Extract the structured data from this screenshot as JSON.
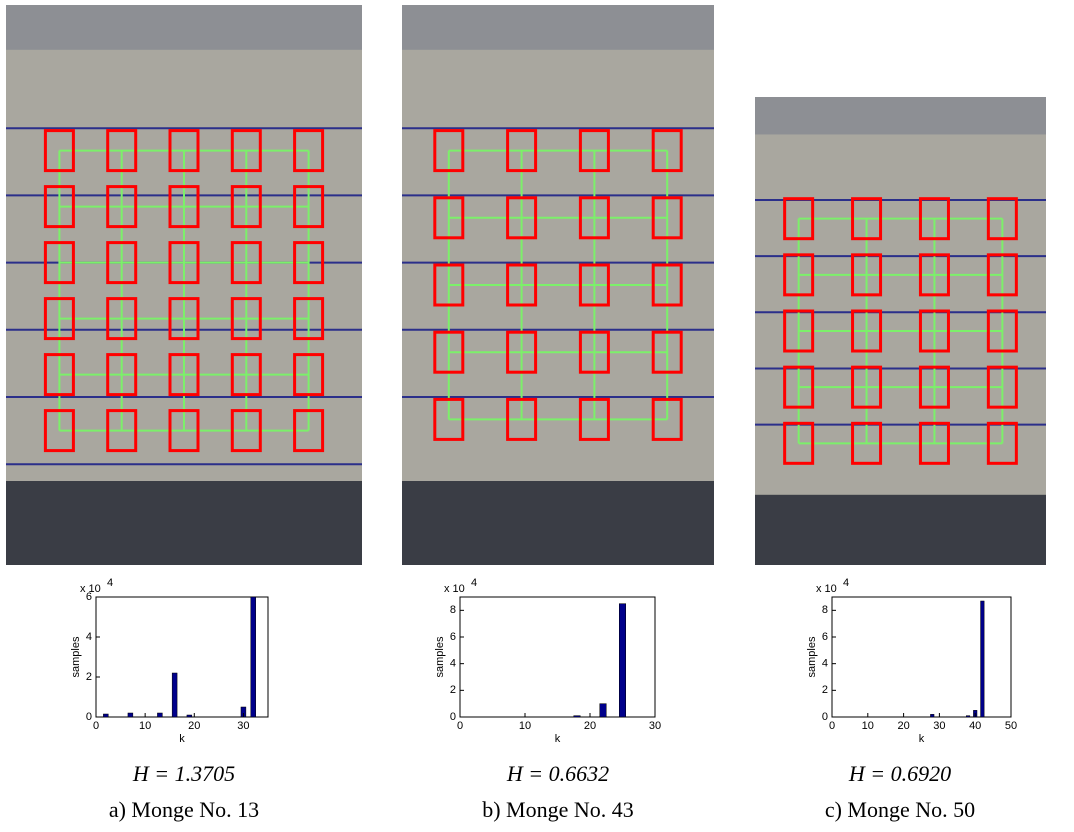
{
  "chart_data": [
    {
      "type": "bar",
      "x": [
        2,
        7,
        13,
        16,
        19,
        30,
        32
      ],
      "values": [
        0.15,
        0.2,
        0.2,
        2.2,
        0.1,
        0.5,
        6
      ],
      "xlim": [
        0,
        35
      ],
      "xticks": [
        0,
        10,
        20,
        30
      ],
      "ylim": [
        0,
        6
      ],
      "yticks": [
        0,
        2,
        4,
        6
      ],
      "xlabel": "k",
      "ylabel": "samples",
      "scale_label": "x 10",
      "scale_exponent": "4",
      "color": "#00008b"
    },
    {
      "type": "bar",
      "x": [
        18,
        22,
        25
      ],
      "values": [
        0.1,
        1.0,
        8.5
      ],
      "xlim": [
        0,
        30
      ],
      "xticks": [
        0,
        10,
        20,
        30
      ],
      "ylim": [
        0,
        9
      ],
      "yticks": [
        0,
        2,
        4,
        6,
        8
      ],
      "xlabel": "k",
      "ylabel": "samples",
      "scale_label": "x 10",
      "scale_exponent": "4",
      "color": "#00008b"
    },
    {
      "type": "bar",
      "x": [
        28,
        38,
        40,
        42
      ],
      "values": [
        0.2,
        0.1,
        0.5,
        8.7
      ],
      "xlim": [
        0,
        50
      ],
      "xticks": [
        0,
        10,
        20,
        30,
        40,
        50
      ],
      "ylim": [
        0,
        9
      ],
      "yticks": [
        0,
        2,
        4,
        6,
        8
      ],
      "xlabel": "k",
      "ylabel": "samples",
      "scale_label": "x 10",
      "scale_exponent": "4",
      "color": "#00008b"
    }
  ],
  "captions": [
    {
      "formula": "H = 1.3705",
      "label": "a) Monge No. 13"
    },
    {
      "formula": "H = 0.6632",
      "label": "b) Monge No. 43"
    },
    {
      "formula": "H = 0.6920",
      "label": "c) Monge No. 50"
    }
  ]
}
